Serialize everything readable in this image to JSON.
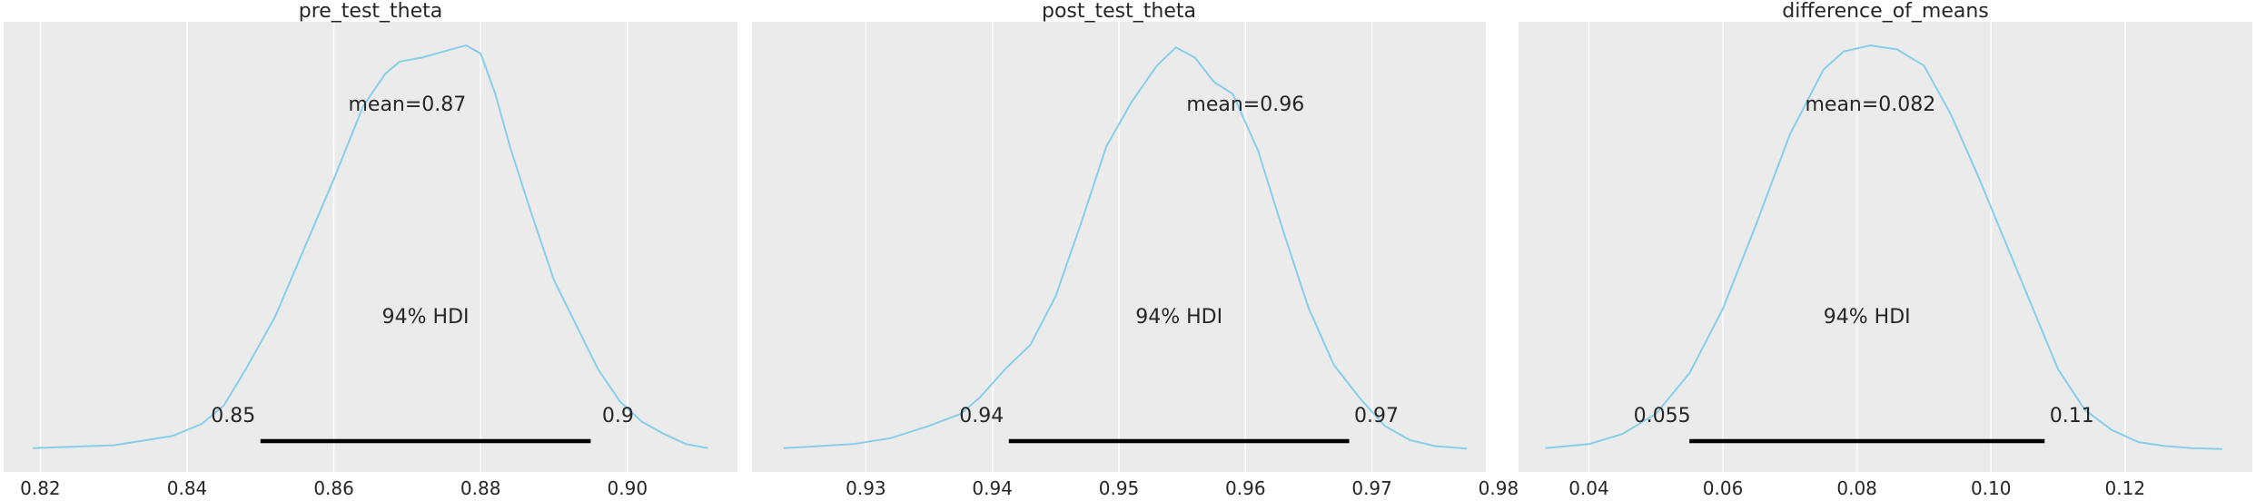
{
  "figure": {
    "background": "#ffffff",
    "axes_facecolor": "#ebebeb",
    "grid_color": "#ffffff",
    "curve_color": "#87ceeb",
    "hdi_color": "#000000",
    "text_color": "#262626"
  },
  "chart_data": [
    {
      "type": "area",
      "kind": "posterior-density",
      "title": "pre_test_theta",
      "xlabel": "",
      "ylabel": "",
      "xlim": [
        0.815,
        0.915
      ],
      "ylim": [
        0,
        1
      ],
      "grid": "vertical",
      "xticks": [
        0.82,
        0.84,
        0.86,
        0.88,
        0.9
      ],
      "xtick_labels": [
        "0.82",
        "0.84",
        "0.86",
        "0.88",
        "0.90"
      ],
      "mean": 0.87,
      "mean_label": "mean=0.87",
      "hdi_prob_label": "94% HDI",
      "hdi": [
        0.85,
        0.895
      ],
      "hdi_labels": [
        "0.85",
        "0.9"
      ],
      "x": [
        0.819,
        0.83,
        0.838,
        0.842,
        0.845,
        0.848,
        0.852,
        0.856,
        0.86,
        0.864,
        0.867,
        0.869,
        0.872,
        0.875,
        0.878,
        0.88,
        0.882,
        0.884,
        0.887,
        0.89,
        0.893,
        0.896,
        0.899,
        0.902,
        0.905,
        0.908,
        0.911
      ],
      "y": [
        0.005,
        0.012,
        0.035,
        0.065,
        0.11,
        0.2,
        0.33,
        0.5,
        0.67,
        0.85,
        0.93,
        0.96,
        0.97,
        0.985,
        1.0,
        0.98,
        0.88,
        0.75,
        0.58,
        0.42,
        0.31,
        0.2,
        0.12,
        0.07,
        0.04,
        0.015,
        0.005
      ]
    },
    {
      "type": "area",
      "kind": "posterior-density",
      "title": "post_test_theta",
      "xlabel": "",
      "ylabel": "",
      "xlim": [
        0.921,
        0.979
      ],
      "ylim": [
        0,
        1
      ],
      "grid": "vertical",
      "xticks": [
        0.93,
        0.94,
        0.95,
        0.96,
        0.97,
        0.98
      ],
      "xtick_labels": [
        "0.93",
        "0.94",
        "0.95",
        "0.96",
        "0.97",
        "0.98"
      ],
      "mean": 0.96,
      "mean_label": "mean=0.96",
      "hdi_prob_label": "94% HDI",
      "hdi": [
        0.9413,
        0.9682
      ],
      "hdi_labels": [
        "0.94",
        "0.97"
      ],
      "x": [
        0.9235,
        0.929,
        0.932,
        0.935,
        0.9375,
        0.939,
        0.941,
        0.943,
        0.945,
        0.947,
        0.949,
        0.951,
        0.953,
        0.9545,
        0.956,
        0.9575,
        0.959,
        0.961,
        0.963,
        0.965,
        0.967,
        0.969,
        0.971,
        0.973,
        0.975,
        0.9775
      ],
      "y": [
        0.005,
        0.015,
        0.03,
        0.06,
        0.09,
        0.13,
        0.2,
        0.26,
        0.38,
        0.56,
        0.75,
        0.86,
        0.95,
        0.995,
        0.97,
        0.91,
        0.88,
        0.74,
        0.54,
        0.35,
        0.21,
        0.13,
        0.06,
        0.025,
        0.01,
        0.004
      ]
    },
    {
      "type": "area",
      "kind": "posterior-density",
      "title": "difference_of_means",
      "xlabel": "",
      "ylabel": "",
      "xlim": [
        0.0295,
        0.139
      ],
      "ylim": [
        0,
        1
      ],
      "grid": "vertical",
      "xticks": [
        0.04,
        0.06,
        0.08,
        0.1,
        0.12
      ],
      "xtick_labels": [
        "0.04",
        "0.06",
        "0.08",
        "0.10",
        "0.12"
      ],
      "mean": 0.082,
      "mean_label": "mean=0.082",
      "hdi_prob_label": "94% HDI",
      "hdi": [
        0.055,
        0.108
      ],
      "hdi_labels": [
        "0.055",
        "0.11"
      ],
      "x": [
        0.0335,
        0.04,
        0.045,
        0.05,
        0.055,
        0.06,
        0.065,
        0.07,
        0.075,
        0.078,
        0.082,
        0.086,
        0.09,
        0.094,
        0.098,
        0.102,
        0.106,
        0.11,
        0.114,
        0.118,
        0.122,
        0.126,
        0.13,
        0.1345
      ],
      "y": [
        0.005,
        0.015,
        0.04,
        0.09,
        0.19,
        0.35,
        0.56,
        0.78,
        0.94,
        0.985,
        1.0,
        0.99,
        0.95,
        0.83,
        0.68,
        0.52,
        0.36,
        0.2,
        0.1,
        0.05,
        0.02,
        0.01,
        0.005,
        0.003
      ]
    }
  ]
}
